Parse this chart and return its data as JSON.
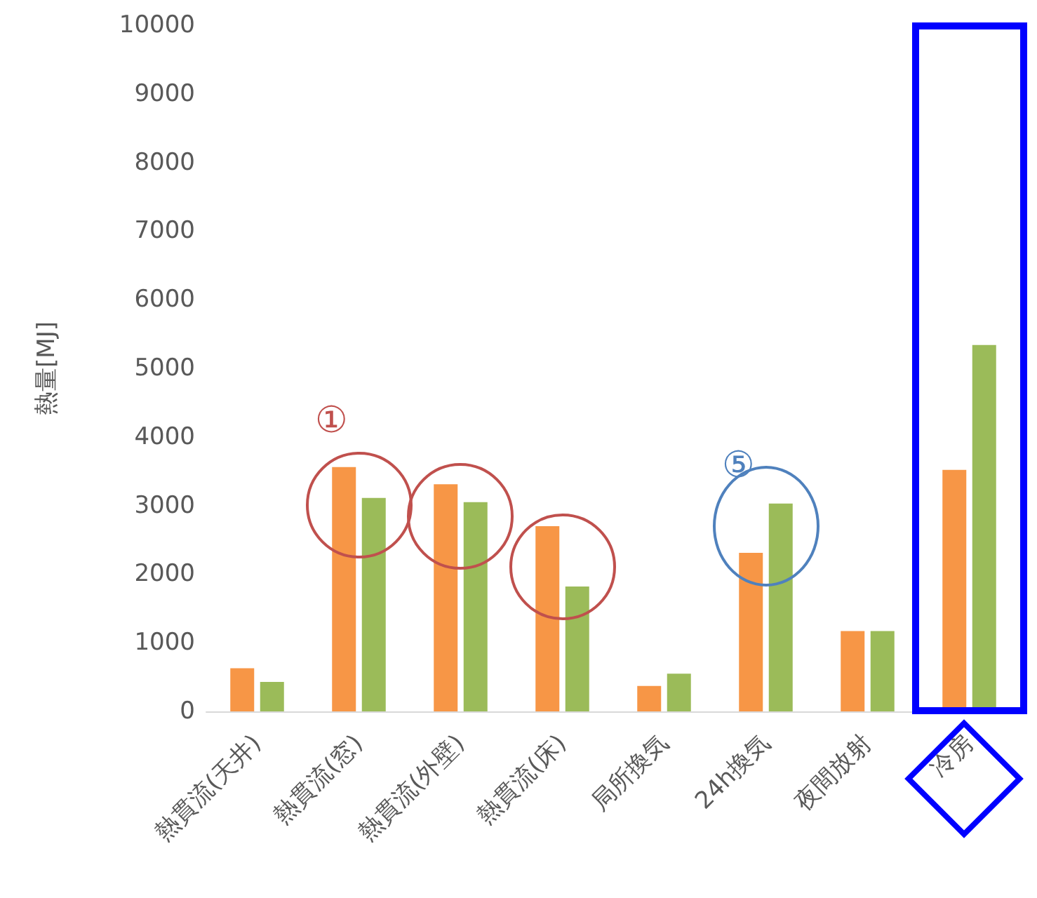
{
  "chart_data": {
    "type": "bar",
    "ylabel": "熱量[MJ]",
    "categories": [
      "熱貫流(天井)",
      "熱貫流(窓)",
      "熱貫流(外壁)",
      "熱貫流(床)",
      "局所換気",
      "24h換気",
      "夜間放射",
      "冷房"
    ],
    "series": [
      {
        "color": "#f79646",
        "values": [
          630,
          3560,
          3310,
          2700,
          370,
          2310,
          1170,
          3520
        ]
      },
      {
        "color": "#9bbb59",
        "values": [
          430,
          3110,
          3050,
          1820,
          550,
          3030,
          1170,
          5340
        ]
      }
    ],
    "ylim": [
      0,
      10000
    ],
    "yticks": [
      0,
      1000,
      2000,
      3000,
      4000,
      5000,
      6000,
      7000,
      8000,
      9000,
      10000
    ],
    "grid": false,
    "annotations": [
      "①",
      "⑤"
    ]
  }
}
